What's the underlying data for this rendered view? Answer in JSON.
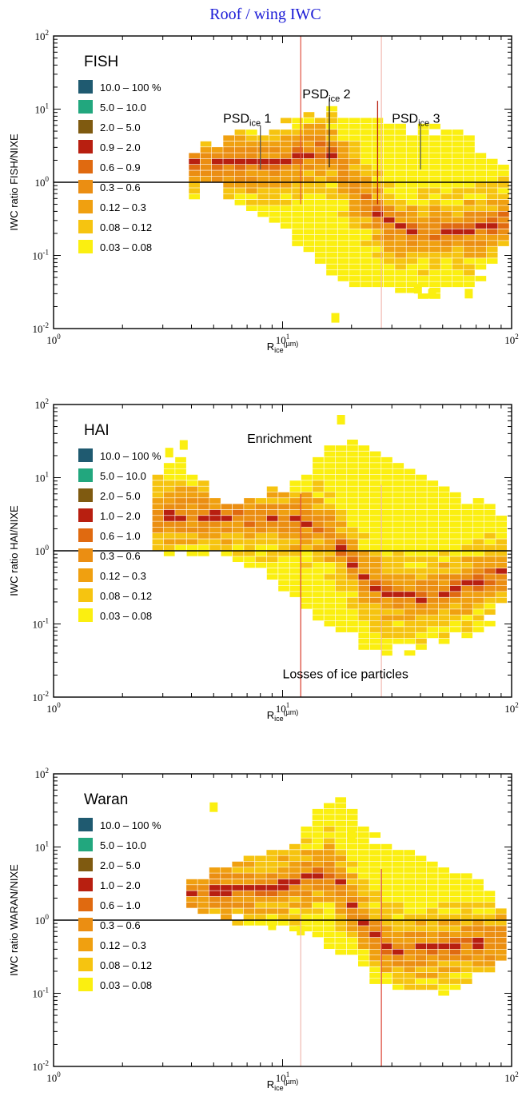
{
  "figure_title": "Roof / wing IWC",
  "colors": {
    "title": "#1a1ad6",
    "reference_line": "#000000",
    "vertical_line": "#d93a2b"
  },
  "legend_colors": [
    "#1f5a70",
    "#22a77e",
    "#7f5a10",
    "#b81f10",
    "#e06a10",
    "#eb8e12",
    "#f0a010",
    "#f6c410",
    "#fbef10"
  ],
  "chart_data": [
    {
      "type": "heatmap",
      "panel_label": "FISH",
      "ylabel": "IWC ratio FISH/NIXE",
      "xlabel_main": "R",
      "xlabel_sub": "ice",
      "xlabel_unit": "(µm)",
      "xscale": "log",
      "yscale": "log",
      "xlim": [
        1,
        100
      ],
      "ylim": [
        0.01,
        100
      ],
      "x_ticks": [
        {
          "base": "10",
          "exp": "0"
        },
        {
          "base": "10",
          "exp": "1"
        },
        {
          "base": "10",
          "exp": "2"
        }
      ],
      "y_ticks": [
        {
          "base": "10",
          "exp": "-2"
        },
        {
          "base": "10",
          "exp": "-1"
        },
        {
          "base": "10",
          "exp": "0"
        },
        {
          "base": "10",
          "exp": "1"
        },
        {
          "base": "10",
          "exp": "2"
        }
      ],
      "legend": [
        "10.0 – 100 %",
        "5.0 – 10.0",
        "2.0 – 5.0",
        "0.9 – 2.0",
        "0.6 – 0.9",
        "0.3 – 0.6",
        "0.12 – 0.3",
        "0.08 – 0.12",
        "0.03 – 0.08"
      ],
      "horizontal_reference_y": 1,
      "vertical_lines": [
        {
          "x": 12,
          "y_top": 100,
          "y_bottom": 0.5,
          "color": "#e05040"
        },
        {
          "x": 27,
          "y_top": 100,
          "y_bottom": 0.01,
          "color": "#f0b8b0"
        }
      ],
      "annotations": [
        {
          "text": "PSD",
          "sub": "ice",
          "suffix": " 1",
          "x": 5.5,
          "y": 6.5,
          "marker_x": 8,
          "marker_top": 6,
          "marker_bottom": 1.5,
          "marker_color": "#555555"
        },
        {
          "text": "PSD",
          "sub": "ice",
          "suffix": " 2",
          "x": 12.2,
          "y": 14,
          "marker_x": 16,
          "marker_top": 14,
          "marker_bottom": 1.6,
          "marker_color": "#222222"
        },
        {
          "text": "PSD",
          "sub": "ice",
          "suffix": " 3",
          "x": 30,
          "y": 6.5,
          "marker_x": 26,
          "marker_top": 13,
          "marker_bottom": 0.5,
          "marker_color": "#b81f10"
        },
        {
          "text": "",
          "sub": "",
          "suffix": "",
          "x": 0,
          "y": 0,
          "marker_x": 40,
          "marker_top": 6,
          "marker_bottom": 1.5,
          "marker_color": "#555555"
        }
      ],
      "ridge": [
        [
          10,
          1.8
        ],
        [
          14,
          2.8
        ],
        [
          16,
          2.5
        ],
        [
          18,
          1.6
        ],
        [
          20,
          1.0
        ],
        [
          23,
          0.55
        ],
        [
          26,
          0.35
        ],
        [
          30,
          0.26
        ],
        [
          40,
          0.2
        ],
        [
          55,
          0.2
        ],
        [
          75,
          0.24
        ],
        [
          95,
          0.3
        ]
      ],
      "envelope": [
        [
          3.9,
          0.6,
          3.0
        ],
        [
          5,
          0.8,
          3.5
        ],
        [
          6.5,
          0.5,
          5
        ],
        [
          8,
          0.4,
          5.5
        ],
        [
          10,
          0.25,
          7
        ],
        [
          12,
          0.1,
          8
        ],
        [
          15,
          0.07,
          10
        ],
        [
          18,
          0.05,
          10
        ],
        [
          22,
          0.03,
          8
        ],
        [
          28,
          0.03,
          7
        ],
        [
          35,
          0.03,
          6
        ],
        [
          45,
          0.025,
          6
        ],
        [
          60,
          0.03,
          5
        ],
        [
          75,
          0.05,
          3
        ],
        [
          95,
          0.15,
          2
        ]
      ],
      "outliers": [
        [
          17,
          0.014
        ],
        [
          39,
          0.035
        ],
        [
          45,
          0.03
        ],
        [
          65,
          0.03
        ]
      ]
    },
    {
      "type": "heatmap",
      "panel_label": "HAI",
      "ylabel": "IWC ratio HAI/NIXE",
      "xlabel_main": "R",
      "xlabel_sub": "ice",
      "xlabel_unit": "(µm)",
      "xscale": "log",
      "yscale": "log",
      "xlim": [
        1,
        100
      ],
      "ylim": [
        0.01,
        100
      ],
      "x_ticks": [
        {
          "base": "10",
          "exp": "0"
        },
        {
          "base": "10",
          "exp": "1"
        },
        {
          "base": "10",
          "exp": "2"
        }
      ],
      "y_ticks": [
        {
          "base": "10",
          "exp": "-2"
        },
        {
          "base": "10",
          "exp": "-1"
        },
        {
          "base": "10",
          "exp": "0"
        },
        {
          "base": "10",
          "exp": "1"
        },
        {
          "base": "10",
          "exp": "2"
        }
      ],
      "legend": [
        "10.0 – 100 %",
        "5.0 – 10.0",
        "2.0 – 5.0",
        "1.0 – 2.0",
        "0.6 – 1.0",
        "0.3 – 0.6",
        "0.12 – 0.3",
        "0.08 – 0.12",
        "0.03 – 0.08"
      ],
      "horizontal_reference_y": 1,
      "vertical_lines": [
        {
          "x": 12,
          "y_top": 6,
          "y_bottom": 0.01,
          "color": "#d93a2b"
        },
        {
          "x": 27,
          "y_top": 8,
          "y_bottom": 0.01,
          "color": "#f0b8b0"
        }
      ],
      "annotations": [
        {
          "text": "Enrichment",
          "sub": "",
          "suffix": "",
          "x": 7.0,
          "y": 30,
          "marker_x": 0,
          "marker_top": 0,
          "marker_bottom": 0,
          "marker_color": ""
        },
        {
          "text": "Losses of ice particles",
          "sub": "",
          "suffix": "",
          "x": 10.0,
          "y": 0.018,
          "marker_x": 0,
          "marker_top": 0,
          "marker_bottom": 0,
          "marker_color": ""
        }
      ],
      "ridge": [
        [
          2.7,
          3.0
        ],
        [
          5,
          3.0
        ],
        [
          8,
          2.8
        ],
        [
          12,
          2.5
        ],
        [
          15,
          2.2
        ],
        [
          17,
          1.4
        ],
        [
          19,
          0.85
        ],
        [
          21,
          0.5
        ],
        [
          24,
          0.35
        ],
        [
          30,
          0.25
        ],
        [
          40,
          0.22
        ],
        [
          60,
          0.3
        ],
        [
          90,
          0.5
        ]
      ],
      "envelope": [
        [
          2.7,
          1.0,
          10
        ],
        [
          3.5,
          0.8,
          25
        ],
        [
          5,
          0.8,
          6
        ],
        [
          7,
          0.6,
          6
        ],
        [
          10,
          0.3,
          8
        ],
        [
          13,
          0.15,
          15
        ],
        [
          17,
          0.07,
          35
        ],
        [
          22,
          0.05,
          35
        ],
        [
          28,
          0.04,
          20
        ],
        [
          35,
          0.04,
          15
        ],
        [
          45,
          0.05,
          12
        ],
        [
          60,
          0.06,
          6
        ],
        [
          75,
          0.08,
          5
        ],
        [
          90,
          0.15,
          3
        ]
      ],
      "outliers": [
        [
          3.7,
          28
        ],
        [
          3.2,
          22
        ],
        [
          18,
          62
        ]
      ]
    },
    {
      "type": "heatmap",
      "panel_label": "Waran",
      "ylabel": "IWC ratio WARAN/NIXE",
      "xlabel_main": "R",
      "xlabel_sub": "ice",
      "xlabel_unit": "(µm)",
      "xscale": "log",
      "yscale": "log",
      "xlim": [
        1,
        100
      ],
      "ylim": [
        0.01,
        100
      ],
      "x_ticks": [
        {
          "base": "10",
          "exp": "0"
        },
        {
          "base": "10",
          "exp": "1"
        },
        {
          "base": "10",
          "exp": "2"
        }
      ],
      "y_ticks": [
        {
          "base": "10",
          "exp": "-2"
        },
        {
          "base": "10",
          "exp": "-1"
        },
        {
          "base": "10",
          "exp": "0"
        },
        {
          "base": "10",
          "exp": "1"
        },
        {
          "base": "10",
          "exp": "2"
        }
      ],
      "legend": [
        "10.0 – 100 %",
        "5.0 – 10.0",
        "2.0 – 5.0",
        "1.0 – 2.0",
        "0.6 – 1.0",
        "0.3 – 0.6",
        "0.12 – 0.3",
        "0.08 – 0.12",
        "0.03 – 0.08"
      ],
      "horizontal_reference_y": 1,
      "vertical_lines": [
        {
          "x": 12,
          "y_top": 1.5,
          "y_bottom": 0.01,
          "color": "#f0b8b0"
        },
        {
          "x": 27,
          "y_top": 5,
          "y_bottom": 0.01,
          "color": "#d93a2b"
        }
      ],
      "annotations": [],
      "ridge": [
        [
          4,
          2.5
        ],
        [
          7,
          2.6
        ],
        [
          10,
          3.0
        ],
        [
          13,
          3.8
        ],
        [
          16,
          4.5
        ],
        [
          18,
          3.0
        ],
        [
          20,
          1.8
        ],
        [
          22,
          1.0
        ],
        [
          25,
          0.6
        ],
        [
          30,
          0.4
        ],
        [
          40,
          0.4
        ],
        [
          60,
          0.45
        ],
        [
          90,
          0.5
        ]
      ],
      "envelope": [
        [
          3.8,
          1.8,
          3.5
        ],
        [
          5,
          1.0,
          6
        ],
        [
          7,
          0.9,
          8
        ],
        [
          10,
          0.8,
          10
        ],
        [
          13,
          0.6,
          20
        ],
        [
          16,
          0.4,
          50
        ],
        [
          20,
          0.25,
          40
        ],
        [
          25,
          0.15,
          15
        ],
        [
          30,
          0.12,
          10
        ],
        [
          40,
          0.1,
          8
        ],
        [
          55,
          0.1,
          6
        ],
        [
          70,
          0.15,
          4
        ],
        [
          90,
          0.25,
          1.5
        ]
      ],
      "outliers": [
        [
          5,
          35
        ],
        [
          9,
          0.85
        ],
        [
          12,
          0.72
        ],
        [
          20,
          14
        ]
      ]
    }
  ]
}
